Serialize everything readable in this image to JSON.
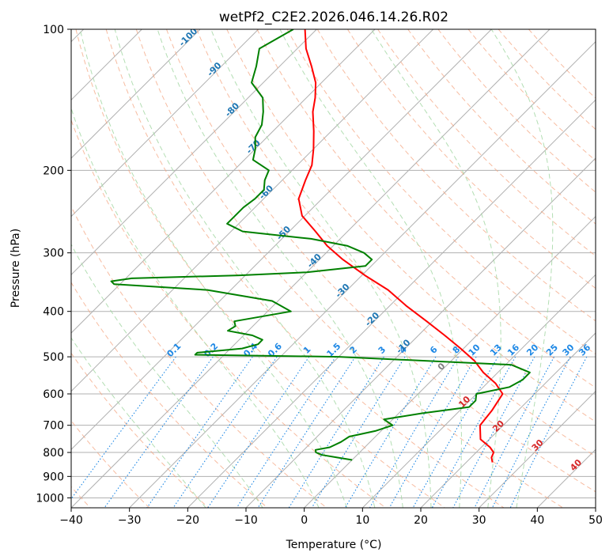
{
  "chart_data": {
    "type": "skew-t",
    "title": "wetPf2_C2E2.2026.046.14.26.R02",
    "xlabel": "Temperature (°C)",
    "ylabel": "Pressure (hPa)",
    "xlim": [
      -40,
      50
    ],
    "ylim": [
      1050,
      100
    ],
    "y_scale": "log",
    "grid": true,
    "x_ticks": [
      -40,
      -30,
      -20,
      -10,
      0,
      10,
      20,
      30,
      40,
      50
    ],
    "x_tick_labels": [
      "−40",
      "−30",
      "−20",
      "−10",
      "0",
      "10",
      "20",
      "30",
      "40",
      "50"
    ],
    "y_ticks": [
      100,
      200,
      300,
      400,
      500,
      600,
      700,
      800,
      900,
      1000
    ],
    "y_tick_labels": [
      "100",
      "200",
      "300",
      "400",
      "500",
      "600",
      "700",
      "800",
      "900",
      "1000"
    ],
    "colors": {
      "temperature": "#ff0000",
      "dewpoint": "#008000",
      "dry_adiabat": "#f4a582",
      "moist_adiabat": "#a6d8a6",
      "mixing_ratio": "#1e88e5",
      "isotherm": "#999999",
      "frame": "#000000"
    },
    "series": [
      {
        "name": "",
        "kind": "temperature",
        "pressure": [
          840,
          820,
          800,
          780,
          750,
          700,
          650,
          600,
          570,
          540,
          510,
          480,
          450,
          420,
          390,
          360,
          335,
          310,
          290,
          270,
          250,
          230,
          210,
          195,
          180,
          165,
          150,
          140,
          130,
          120,
          110,
          100
        ],
        "temperature": [
          24.5,
          23.5,
          23.0,
          21.5,
          18.5,
          16.0,
          15.5,
          14.5,
          11.5,
          7.5,
          4.0,
          -0.5,
          -5.5,
          -11.0,
          -17.0,
          -23.0,
          -29.5,
          -36.0,
          -41.0,
          -45.5,
          -50.5,
          -54.0,
          -56.0,
          -57.5,
          -60.0,
          -63.0,
          -66.5,
          -68.5,
          -71.0,
          -74.5,
          -78.5,
          -82.0
        ]
      },
      {
        "name": "",
        "kind": "dewpoint",
        "pressure": [
          830,
          820,
          810,
          800,
          790,
          780,
          760,
          740,
          720,
          700,
          680,
          660,
          640,
          620,
          600,
          580,
          560,
          540,
          520,
          500,
          495,
          490,
          480,
          470,
          460,
          450,
          440,
          430,
          420,
          400,
          380,
          360,
          350,
          345,
          340,
          335,
          330,
          320,
          310,
          300,
          290,
          280,
          270,
          260,
          250,
          240,
          230,
          220,
          210,
          200,
          190,
          180,
          170,
          160,
          150,
          140,
          130,
          120,
          110,
          100
        ],
        "dewpoint": [
          0.0,
          -3.0,
          -6.0,
          -7.5,
          -8.0,
          -6.0,
          -5.0,
          -4.5,
          -1.0,
          1.0,
          -1.5,
          4.0,
          11.0,
          11.0,
          10.0,
          14.5,
          15.5,
          15.5,
          11.0,
          -20.0,
          -45.0,
          -45.0,
          -38.0,
          -36.0,
          -36.0,
          -38.5,
          -43.5,
          -43.0,
          -44.0,
          -36.0,
          -41.0,
          -54.0,
          -71.0,
          -72.0,
          -69.0,
          -51.0,
          -40.0,
          -31.0,
          -31.0,
          -33.5,
          -37.5,
          -45.0,
          -58.0,
          -62.0,
          -62.0,
          -62.0,
          -61.5,
          -61.5,
          -63.0,
          -64.0,
          -68.5,
          -70.0,
          -72.0,
          -73.0,
          -75.0,
          -77.5,
          -82.0,
          -84.0,
          -86.5,
          -84.0
        ]
      }
    ],
    "dry_adiabats_c": [
      -40,
      -30,
      -20,
      -10,
      0,
      10,
      20,
      30,
      40,
      50,
      60,
      70,
      80,
      90,
      100,
      110,
      120,
      130,
      140,
      150,
      160,
      170
    ],
    "moist_adiabats_c": [
      -20,
      -10,
      0,
      5,
      10,
      15,
      20,
      25,
      30,
      35
    ],
    "isotherm_labels": {
      "values": [
        "-100",
        "-90",
        "-80",
        "-70",
        "-60",
        "-50",
        "-40",
        "-30",
        "-20",
        "-10"
      ],
      "color": "#1f77b4"
    },
    "mixing_ratio_lines": {
      "values_g_per_kg": [
        0.1,
        0.2,
        0.4,
        0.6,
        1,
        1.5,
        2,
        3,
        4,
        6,
        8,
        10,
        13,
        16,
        20,
        25,
        30,
        36
      ],
      "labels": [
        "0.1",
        "0.2",
        "0.4",
        "0.6",
        "1",
        "1.5",
        "2",
        "3",
        "4",
        "6",
        "8",
        "10",
        "13",
        "16",
        "20",
        "25",
        "30",
        "36"
      ],
      "top_pressure": 500,
      "color": "#1e88e5"
    },
    "lower_isotherm_labels": {
      "values": [
        "0",
        "10",
        "20",
        "30",
        "40"
      ],
      "zero_color": "#808080",
      "color": "#d62728"
    }
  }
}
